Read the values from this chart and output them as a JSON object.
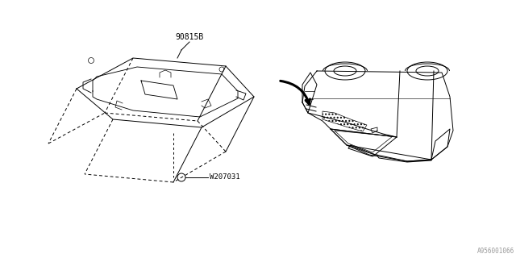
{
  "bg_color": "#ffffff",
  "line_color": "#000000",
  "label_90815B": "90815B",
  "label_W207031": "W207031",
  "watermark": "A956001066",
  "arrow_color": "#000000"
}
